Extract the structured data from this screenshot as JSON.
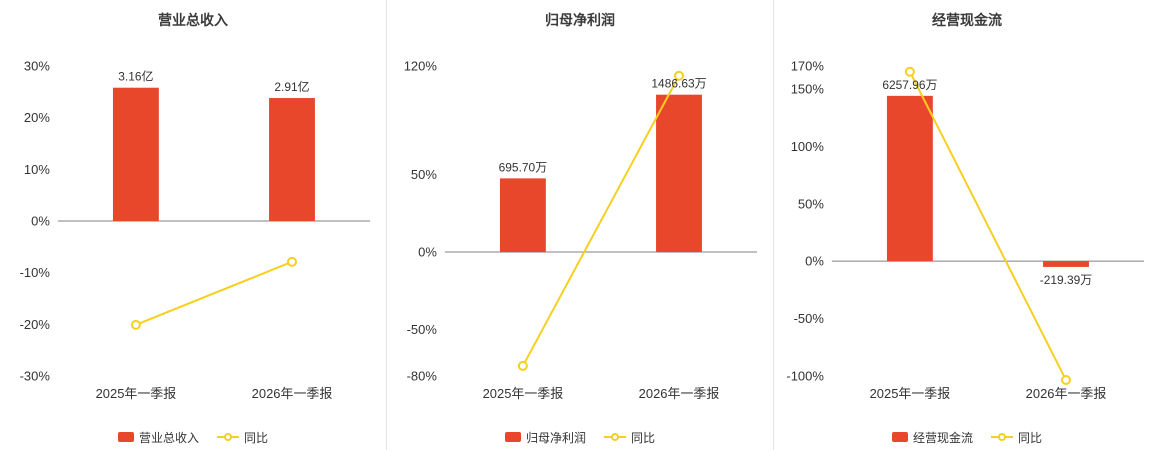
{
  "colors": {
    "bar": "#e8472c",
    "line": "#f5d020",
    "axis": "#808080",
    "divider": "#e3e3e3",
    "tick_text": "#333333",
    "title_text": "#3b3b3b"
  },
  "chart_data": [
    {
      "type": "bar+line",
      "title": "营业总收入",
      "categories": [
        "2025年一季报",
        "2026年一季报"
      ],
      "ylim": [
        -30,
        30
      ],
      "yticks": [
        30,
        20,
        10,
        0,
        -10,
        -20,
        -30
      ],
      "bar_series": {
        "name": "营业总收入",
        "labels": [
          "3.16亿",
          "2.91亿"
        ],
        "display_pct": [
          25.8,
          23.8
        ]
      },
      "line_series": {
        "name": "同比",
        "values_pct": [
          -20.1,
          -7.9
        ]
      },
      "legend": [
        "营业总收入",
        "同比"
      ],
      "grid": false,
      "legend_position": "bottom"
    },
    {
      "type": "bar+line",
      "title": "归母净利润",
      "categories": [
        "2025年一季报",
        "2026年一季报"
      ],
      "ylim": [
        -80,
        120
      ],
      "yticks": [
        120,
        50,
        0,
        -50,
        -80
      ],
      "bar_series": {
        "name": "归母净利润",
        "labels": [
          "695.70万",
          "1486.63万"
        ],
        "display_pct": [
          47.5,
          101.5
        ]
      },
      "line_series": {
        "name": "同比",
        "values_pct": [
          -73.5,
          113.7
        ]
      },
      "legend": [
        "归母净利润",
        "同比"
      ],
      "grid": false,
      "legend_position": "bottom"
    },
    {
      "type": "bar+line",
      "title": "经营现金流",
      "categories": [
        "2025年一季报",
        "2026年一季报"
      ],
      "ylim": [
        -100,
        170
      ],
      "yticks": [
        170,
        150,
        100,
        50,
        0,
        -50,
        -100
      ],
      "bar_series": {
        "name": "经营现金流",
        "labels": [
          "6257.96万",
          "-219.39万"
        ],
        "display_pct": [
          144,
          -5
        ]
      },
      "line_series": {
        "name": "同比",
        "values_pct": [
          165,
          -103.5
        ]
      },
      "legend": [
        "经营现金流",
        "同比"
      ],
      "grid": false,
      "legend_position": "bottom"
    }
  ]
}
